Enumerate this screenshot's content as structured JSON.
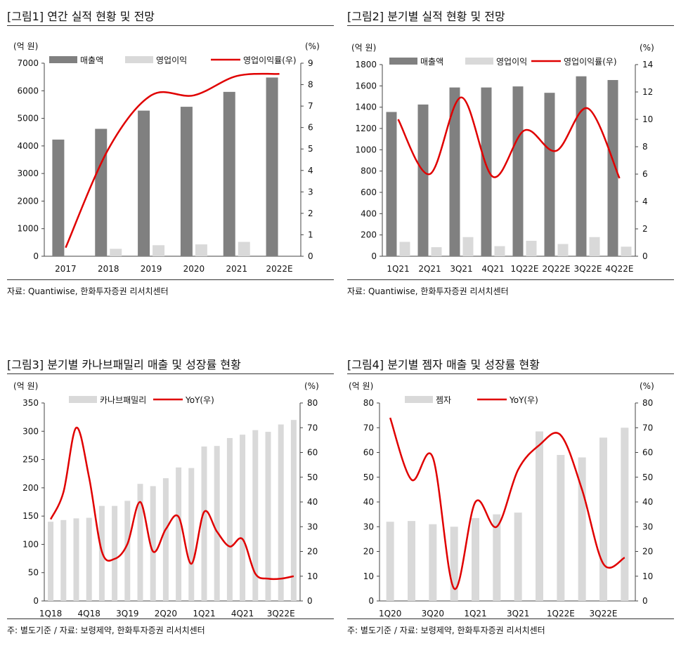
{
  "colors": {
    "sales": "#808080",
    "op": "#d9d9d9",
    "line": "#e00000",
    "bar_light": "#d9d9d9",
    "axis": "#444444"
  },
  "panels": [
    {
      "title": "[그림1]    연간 실적 현황 및 전망",
      "source": "자료: Quantiwise, 한화투자증권 리서치센터",
      "chart_data": {
        "type": "bar",
        "categories": [
          "2017",
          "2018",
          "2019",
          "2020",
          "2021",
          "2022E"
        ],
        "left_unit": "(억 원)",
        "right_unit": "(%)",
        "left_ylim": [
          0,
          7000
        ],
        "left_step": 1000,
        "right_ylim": [
          0,
          9
        ],
        "right_step": 1,
        "bars": [
          {
            "name": "매출액",
            "color": "#808080",
            "values": [
              4230,
              4620,
              5280,
              5420,
              5960,
              6480
            ]
          },
          {
            "name": "영업이익",
            "color": "#d9d9d9",
            "values": [
              0,
              270,
              400,
              430,
              520,
              0
            ]
          }
        ],
        "line": {
          "name": "영업이익률(우)",
          "color": "#e00000",
          "values": [
            0.4,
            5.0,
            7.5,
            7.5,
            8.4,
            8.5
          ]
        },
        "legend_position": "top"
      }
    },
    {
      "title": "[그림2]    분기별 실적 현황 및 전망",
      "source": "자료: Quantiwise, 한화투자증권 리서치센터",
      "chart_data": {
        "type": "bar",
        "categories": [
          "1Q21",
          "2Q21",
          "3Q21",
          "4Q21",
          "1Q22E",
          "2Q22E",
          "3Q22E",
          "4Q22E"
        ],
        "left_unit": "(억 원)",
        "right_unit": "(%)",
        "left_ylim": [
          0,
          1800
        ],
        "left_step": 200,
        "right_ylim": [
          0,
          14
        ],
        "right_step": 2,
        "bars": [
          {
            "name": "매출액",
            "color": "#808080",
            "values": [
              1355,
              1425,
              1585,
              1585,
              1595,
              1535,
              1690,
              1655
            ]
          },
          {
            "name": "영업이익",
            "color": "#d9d9d9",
            "values": [
              135,
              85,
              180,
              95,
              145,
              115,
              180,
              90
            ]
          }
        ],
        "line": {
          "name": "영업이익률(우)",
          "color": "#e00000",
          "values": [
            10.0,
            6.0,
            11.6,
            5.8,
            9.2,
            7.7,
            10.8,
            5.7
          ]
        },
        "legend_position": "top"
      }
    },
    {
      "title": "[그림3]    분기별 카나브패밀리 매출 및 성장률 현황",
      "source": "주: 별도기준 / 자료: 보령제약, 한화투자증권 리서치센터",
      "chart_data": {
        "type": "bar",
        "categories": [
          "1Q18",
          "2Q18",
          "3Q18",
          "4Q18",
          "1Q19",
          "2Q19",
          "3Q19",
          "4Q19",
          "1Q20",
          "2Q20",
          "3Q20",
          "4Q20",
          "1Q21",
          "2Q21",
          "3Q21",
          "4Q21",
          "1Q22E",
          "2Q22E",
          "3Q22E",
          "4Q22E"
        ],
        "tick_labels": [
          "1Q18",
          "",
          "",
          "4Q18",
          "",
          "",
          "3Q19",
          "",
          "",
          "2Q20",
          "",
          "",
          "1Q21",
          "",
          "",
          "4Q21",
          "",
          "",
          "3Q22E",
          ""
        ],
        "left_unit": "(억 원)",
        "right_unit": "(%)",
        "left_ylim": [
          0,
          350
        ],
        "left_step": 50,
        "right_ylim": [
          0,
          80
        ],
        "right_step": 10,
        "bars": [
          {
            "name": "카나브패밀리",
            "color": "#d9d9d9",
            "values": [
              140,
              143,
              146,
              147,
              168,
              168,
              177,
              207,
              203,
              217,
              236,
              235,
              273,
              274,
              288,
              294,
              302,
              299,
              312,
              320
            ]
          }
        ],
        "line": {
          "name": "YoY(우)",
          "color": "#e00000",
          "values": [
            33,
            44,
            70,
            50,
            20,
            17,
            23,
            40,
            20,
            29,
            34,
            15,
            36,
            28,
            22,
            25,
            11,
            9,
            9,
            10
          ]
        },
        "legend_position": "top"
      }
    },
    {
      "title": "[그림4]    분기별 젬자 매출 및 성장률 현황",
      "source": "주: 별도기준 / 자료: 보령제약, 한화투자증권 리서치센터",
      "chart_data": {
        "type": "bar",
        "categories": [
          "1Q20",
          "2Q20",
          "3Q20",
          "4Q20",
          "1Q21",
          "2Q21",
          "3Q21",
          "4Q21",
          "1Q22E",
          "2Q22E",
          "3Q22E",
          "4Q22E"
        ],
        "tick_labels": [
          "1Q20",
          "",
          "3Q20",
          "",
          "1Q21",
          "",
          "3Q21",
          "",
          "1Q22E",
          "",
          "3Q22E",
          ""
        ],
        "left_unit": "(억 원)",
        "right_unit": "(%)",
        "left_ylim": [
          0,
          80
        ],
        "left_step": 10,
        "right_ylim": [
          0,
          80
        ],
        "right_step": 10,
        "bars": [
          {
            "name": "젬자",
            "color": "#d9d9d9",
            "values": [
              32,
              32.3,
              31,
              30,
              33.5,
              35,
              35.7,
              68.5,
              59,
              58,
              66,
              70
            ]
          }
        ],
        "line": {
          "name": "YoY(우)",
          "color": "#e00000",
          "values": [
            74,
            49,
            58,
            5,
            40,
            30,
            53,
            63,
            67,
            45,
            15,
            17.5
          ]
        },
        "legend_position": "top"
      }
    }
  ]
}
